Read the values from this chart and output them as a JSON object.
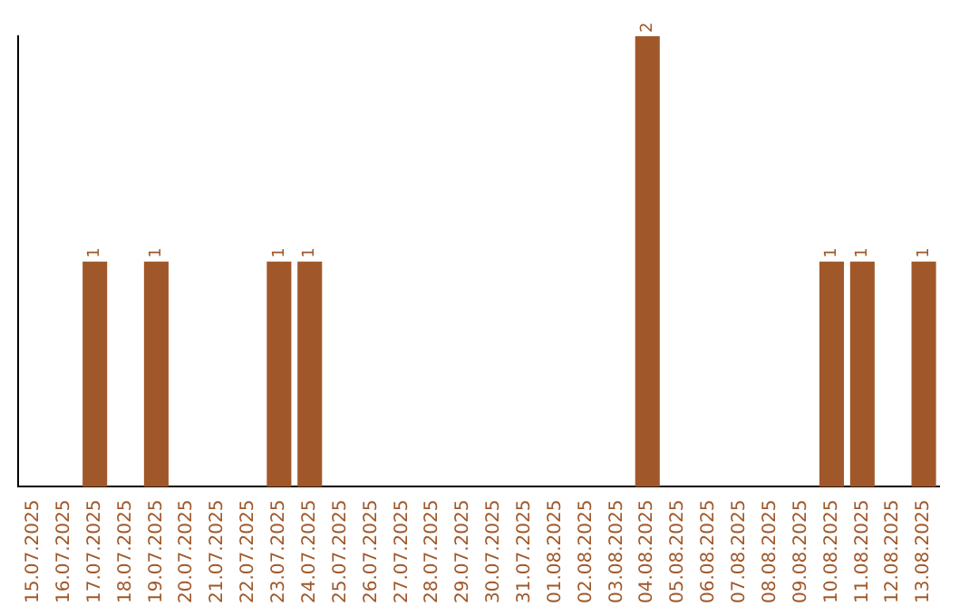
{
  "chart_data": {
    "type": "bar",
    "categories": [
      "15.07.2025",
      "16.07.2025",
      "17.07.2025",
      "18.07.2025",
      "19.07.2025",
      "20.07.2025",
      "21.07.2025",
      "22.07.2025",
      "23.07.2025",
      "24.07.2025",
      "25.07.2025",
      "26.07.2025",
      "27.07.2025",
      "28.07.2025",
      "29.07.2025",
      "30.07.2025",
      "31.07.2025",
      "01.08.2025",
      "02.08.2025",
      "03.08.2025",
      "04.08.2025",
      "05.08.2025",
      "06.08.2025",
      "07.08.2025",
      "08.08.2025",
      "09.08.2025",
      "10.08.2025",
      "11.08.2025",
      "12.08.2025",
      "13.08.2025"
    ],
    "values": [
      0,
      0,
      1,
      0,
      1,
      0,
      0,
      0,
      1,
      1,
      0,
      0,
      0,
      0,
      0,
      0,
      0,
      0,
      0,
      0,
      2,
      0,
      0,
      0,
      0,
      0,
      1,
      1,
      0,
      1
    ],
    "value_labels": [
      null,
      null,
      "1",
      null,
      "1",
      null,
      null,
      null,
      "1",
      "1",
      null,
      null,
      null,
      null,
      null,
      null,
      null,
      null,
      null,
      null,
      "2",
      null,
      null,
      null,
      null,
      null,
      "1",
      "1",
      null,
      "1"
    ],
    "color": "#a0582a",
    "grid": false,
    "legend": false,
    "tick_labels": "x"
  }
}
